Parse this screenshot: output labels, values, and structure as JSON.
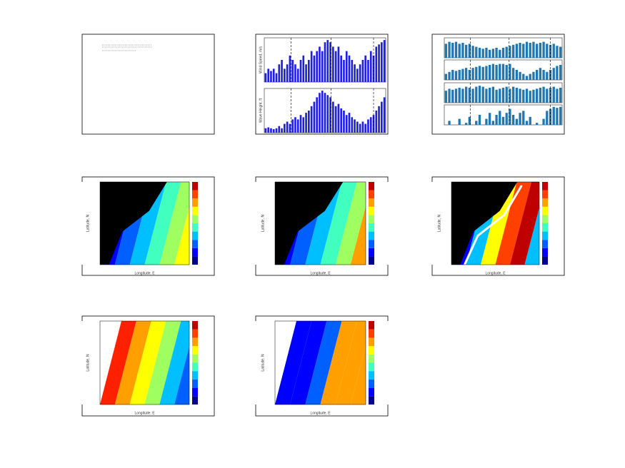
{
  "chart_data": [
    {
      "type": "bar",
      "ylabel": "Wind Speed, m/s",
      "color": "#1f1fe0",
      "ylim": [
        0,
        10
      ],
      "values": [
        2,
        3,
        2.5,
        3,
        2,
        4,
        5,
        3,
        4,
        6,
        5,
        4,
        3,
        5,
        6,
        4,
        5,
        7,
        6,
        7,
        8,
        7,
        9,
        9.5,
        9,
        8,
        7,
        8,
        6,
        5,
        7,
        6,
        5,
        4,
        3,
        4,
        5,
        6,
        5,
        7,
        6,
        8,
        8.5,
        9,
        9.5
      ]
    },
    {
      "type": "bar",
      "ylabel": "Wave Height, ft",
      "color": "#1f1fe0",
      "ylim": [
        0,
        10
      ],
      "values": [
        1,
        1.2,
        1,
        0.8,
        1,
        1.5,
        1,
        2,
        2.5,
        2,
        3,
        3.5,
        3,
        4,
        3.5,
        4.5,
        5,
        6,
        7,
        8,
        9,
        9.5,
        9,
        8.5,
        8,
        7,
        6,
        6.5,
        5.5,
        5,
        4,
        4.5,
        3.5,
        3,
        2.5,
        2,
        2.5,
        2,
        3,
        3.5,
        4,
        5,
        6,
        7,
        8
      ]
    },
    {
      "type": "bar",
      "color": "#1f77b4",
      "ylim": [
        0,
        10
      ],
      "values": [
        7,
        8,
        7.5,
        8,
        7,
        7.5,
        6.5,
        7,
        6,
        5.5,
        5,
        4.5,
        5,
        4,
        4.5,
        5,
        4,
        5,
        5.5,
        6,
        6.5,
        7,
        7.5,
        7,
        8,
        7.5,
        8,
        7,
        7.5,
        8,
        7,
        6.5,
        7,
        6,
        5.5
      ]
    },
    {
      "type": "bar",
      "color": "#1f77b4",
      "ylim": [
        0,
        10
      ],
      "values": [
        3,
        4,
        5,
        4.5,
        5,
        5.5,
        6,
        5,
        6,
        6.5,
        7,
        6.5,
        7,
        7.5,
        8,
        7.5,
        8,
        8,
        7.5,
        8,
        6,
        5,
        4,
        3,
        2,
        3,
        4,
        5,
        6,
        5,
        4,
        5,
        6,
        7,
        7.5
      ]
    },
    {
      "type": "bar",
      "color": "#1f77b4",
      "ylim": [
        0,
        10
      ],
      "values": [
        6,
        7,
        6.5,
        7,
        7.5,
        7,
        8,
        7.5,
        7,
        8,
        8.5,
        8,
        7,
        7.5,
        8,
        6.5,
        7,
        7.5,
        8,
        7,
        8,
        7.5,
        7,
        6.5,
        7,
        6,
        6.5,
        7,
        7.5,
        8,
        7,
        7.5,
        8,
        7,
        7.5
      ]
    },
    {
      "type": "bar",
      "color": "#1f77b4",
      "ylim": [
        0,
        10
      ],
      "values": [
        0,
        2,
        0,
        0,
        3,
        0,
        1,
        4,
        0,
        2,
        5,
        0,
        3,
        6,
        2,
        5,
        7,
        4,
        6,
        8,
        5,
        3,
        6,
        7,
        2,
        4,
        0,
        1,
        0,
        3,
        7,
        8,
        9,
        8.5,
        9
      ]
    }
  ],
  "maps": [
    {
      "xlabel": "Longitude, E",
      "ylabel": "Latitude, N"
    },
    {
      "xlabel": "Longitude, E",
      "ylabel": "Latitude, N"
    },
    {
      "xlabel": "Longitude, E",
      "ylabel": "Latitude, N"
    },
    {
      "xlabel": "Longitude, E",
      "ylabel": "Latitude, N"
    },
    {
      "xlabel": "Longitude, E",
      "ylabel": "Latitude, N"
    }
  ]
}
